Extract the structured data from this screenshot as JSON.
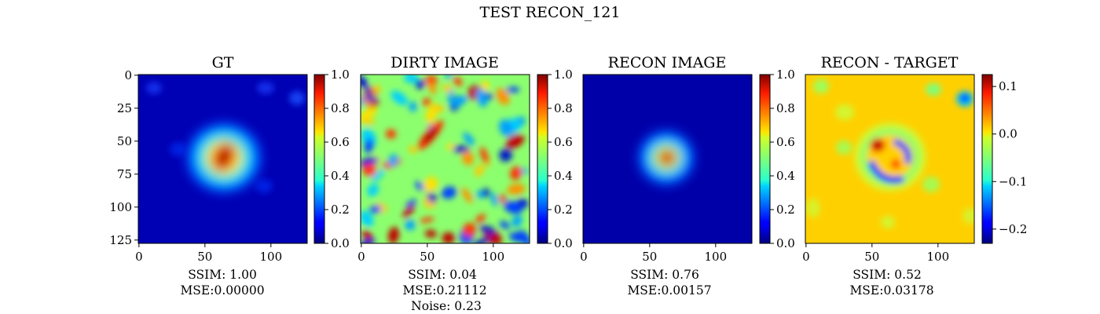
{
  "figure": {
    "title": "TEST RECON_121"
  },
  "chart_data": [
    {
      "type": "heatmap",
      "title": "GT",
      "image_size": 128,
      "xticks": [
        0,
        50,
        100
      ],
      "yticks": [
        0,
        25,
        50,
        75,
        100,
        125
      ],
      "colorbar": {
        "min": 0.0,
        "max": 1.0,
        "ticks": [
          "0.0",
          "0.2",
          "0.4",
          "0.6",
          "0.8",
          "1.0"
        ],
        "tick_values": [
          0.0,
          0.2,
          0.4,
          0.6,
          0.8,
          1.0
        ]
      },
      "captions": [
        "SSIM: 1.00",
        "MSE:0.00000"
      ]
    },
    {
      "type": "heatmap",
      "title": "DIRTY IMAGE",
      "image_size": 128,
      "xticks": [
        0,
        50,
        100
      ],
      "colorbar": {
        "min": 0.0,
        "max": 1.0,
        "ticks": [
          "0.0",
          "0.2",
          "0.4",
          "0.6",
          "0.8",
          "1.0"
        ],
        "tick_values": [
          0.0,
          0.2,
          0.4,
          0.6,
          0.8,
          1.0
        ]
      },
      "captions": [
        "SSIM: 0.04",
        "MSE:0.21112",
        "Noise: 0.23"
      ]
    },
    {
      "type": "heatmap",
      "title": "RECON IMAGE",
      "image_size": 128,
      "xticks": [
        0,
        50,
        100
      ],
      "colorbar": {
        "min": 0.0,
        "max": 1.0,
        "ticks": [
          "0.0",
          "0.2",
          "0.4",
          "0.6",
          "0.8",
          "1.0"
        ],
        "tick_values": [
          0.0,
          0.2,
          0.4,
          0.6,
          0.8,
          1.0
        ]
      },
      "captions": [
        "SSIM: 0.76",
        "MSE:0.00157"
      ]
    },
    {
      "type": "heatmap",
      "title": "RECON - TARGET",
      "image_size": 128,
      "xticks": [
        0,
        50,
        100
      ],
      "colorbar": {
        "min": -0.23,
        "max": 0.125,
        "ticks": [
          "0.1",
          "0.0",
          "−0.1",
          "−0.2"
        ],
        "tick_values": [
          0.1,
          0.0,
          -0.1,
          -0.2
        ]
      },
      "captions": [
        "SSIM: 0.52",
        "MSE:0.03178"
      ]
    }
  ]
}
